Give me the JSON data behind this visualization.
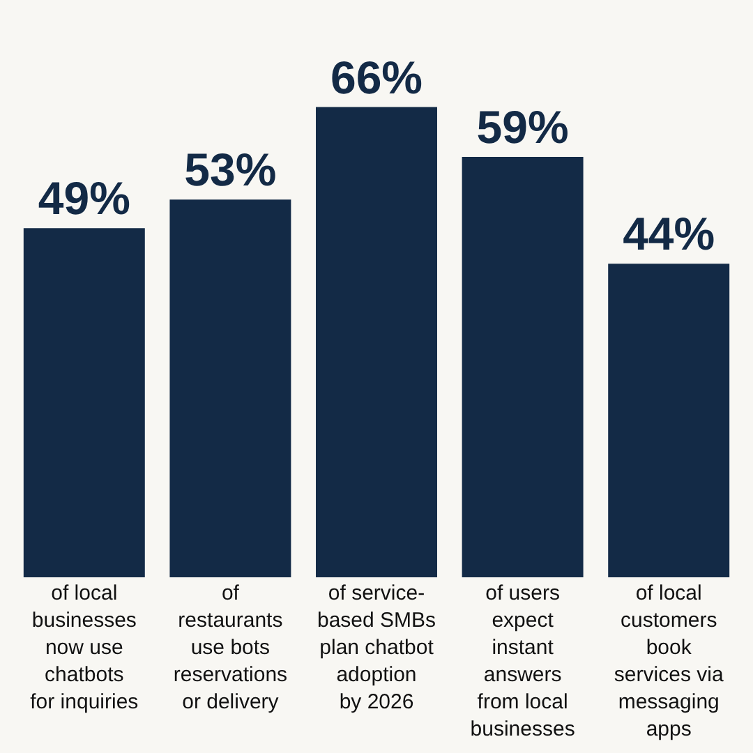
{
  "chart_data": {
    "type": "bar",
    "categories": [
      "of local\nbusinesses\nnow use\nchatbots\nfor inquiries",
      "of\nrestaurants\nuse bots\nreservations\nor delivery",
      "of service-\nbased SMBs\nplan chatbot\nadoption\nby 2026",
      "of users\nexpect\ninstant\nanswers\nfrom local\nbusinesses",
      "of local\ncustomers\nbook\nservices via\nmessaging\napps"
    ],
    "series": [
      {
        "color": "#132a46",
        "values": [
          49,
          53,
          66,
          59,
          44
        ],
        "value_labels": [
          "49%",
          "53%",
          "66%",
          "59%",
          "44%"
        ]
      }
    ],
    "grid": false,
    "legend": false
  }
}
